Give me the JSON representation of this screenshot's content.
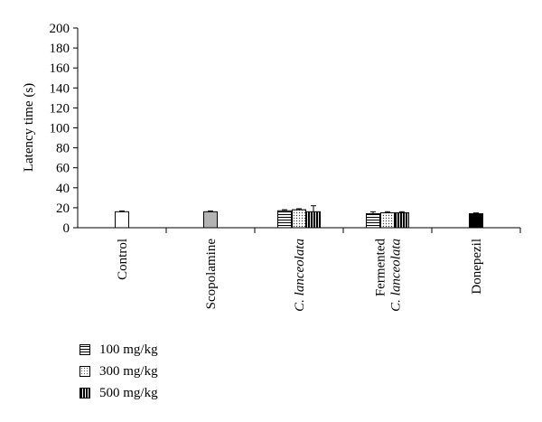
{
  "chart_data": {
    "type": "bar",
    "ylabel": "Latency time (s)",
    "ylim": [
      0,
      200
    ],
    "yticks": [
      "0",
      "20",
      "40",
      "60",
      "80",
      "100",
      "120",
      "140",
      "160",
      "180",
      "200"
    ],
    "groups": [
      {
        "label_lines": [
          {
            "text": "Control",
            "italic": false
          }
        ],
        "bars": [
          {
            "fill": "white",
            "value": 16,
            "error": 0.8
          }
        ]
      },
      {
        "label_lines": [
          {
            "text": "Scopolamine",
            "italic": false
          }
        ],
        "bars": [
          {
            "fill": "gray",
            "value": 16,
            "error": 0.8
          }
        ]
      },
      {
        "label_lines": [
          {
            "text": "C. lanceolata",
            "italic": true
          }
        ],
        "bars": [
          {
            "fill": "horizontal",
            "value": 17,
            "error": 1.0
          },
          {
            "fill": "dotted",
            "value": 18,
            "error": 1.0
          },
          {
            "fill": "vertical",
            "value": 16,
            "error": 6.0
          }
        ]
      },
      {
        "label_lines": [
          {
            "text": "Fermented",
            "italic": false
          },
          {
            "text": "C. lanceolata",
            "italic": true
          }
        ],
        "bars": [
          {
            "fill": "horizontal",
            "value": 14,
            "error": 2.0
          },
          {
            "fill": "dotted",
            "value": 15,
            "error": 1.0
          },
          {
            "fill": "vertical",
            "value": 15,
            "error": 1.0
          }
        ]
      },
      {
        "label_lines": [
          {
            "text": "Donepezil",
            "italic": false
          }
        ],
        "bars": [
          {
            "fill": "black",
            "value": 14,
            "error": 0.8
          }
        ]
      }
    ],
    "legend": {
      "placement": "bottom-left",
      "entries": [
        {
          "label": "100 mg/kg",
          "pattern": "horizontal"
        },
        {
          "label": "300 mg/kg",
          "pattern": "dotted"
        },
        {
          "label": "500 mg/kg",
          "pattern": "vertical"
        }
      ]
    },
    "grid": false
  }
}
